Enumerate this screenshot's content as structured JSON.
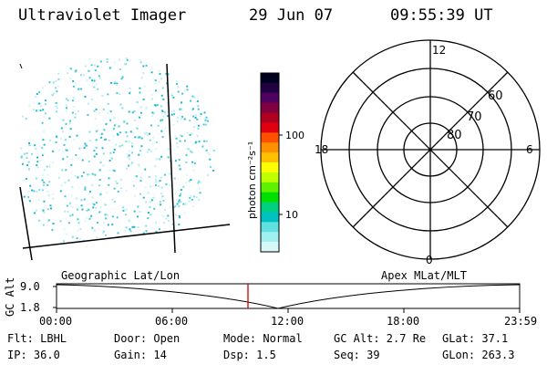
{
  "header": {
    "title": "Ultraviolet Imager",
    "date": "29 Jun 07",
    "time": "09:55:39 UT"
  },
  "colorbar": {
    "label": "photon cm⁻²s⁻¹",
    "ticks": [
      "100",
      "10"
    ],
    "colors": [
      "#000020",
      "#200040",
      "#500060",
      "#800040",
      "#b00020",
      "#e00010",
      "#ff5000",
      "#ff9000",
      "#ffc000",
      "#ffff00",
      "#c0ff00",
      "#60f000",
      "#00e000",
      "#00d080",
      "#00c0c0",
      "#60e0e0",
      "#a0f0f0",
      "#d8f8f8"
    ]
  },
  "polar": {
    "mlt_labels": [
      "12",
      "18",
      "6",
      "0"
    ],
    "lat_labels": [
      "60",
      "70",
      "80"
    ]
  },
  "image": {
    "pixel_color": "#40c8d8"
  },
  "timeline": {
    "ylabel": "GC Alt",
    "left_label": "Geographic Lat/Lon",
    "right_label": "Apex MLat/MLT",
    "yticks": [
      "9.0",
      "1.8"
    ],
    "xticks": [
      "00:00",
      "06:00",
      "12:00",
      "18:00",
      "23:59"
    ],
    "current_time_color": "#cc0000"
  },
  "footer": {
    "row1": {
      "flt": "Flt: LBHL",
      "door": "Door: Open",
      "mode": "Mode: Normal",
      "gcalt": "GC Alt: 2.7 Re",
      "glat": "GLat:  37.1"
    },
    "row2": {
      "ip": "IP: 36.0",
      "gain": "Gain: 14",
      "dsp": "Dsp:    1.5",
      "seq": "Seq: 39",
      "glon": "GLon: 263.3"
    }
  }
}
